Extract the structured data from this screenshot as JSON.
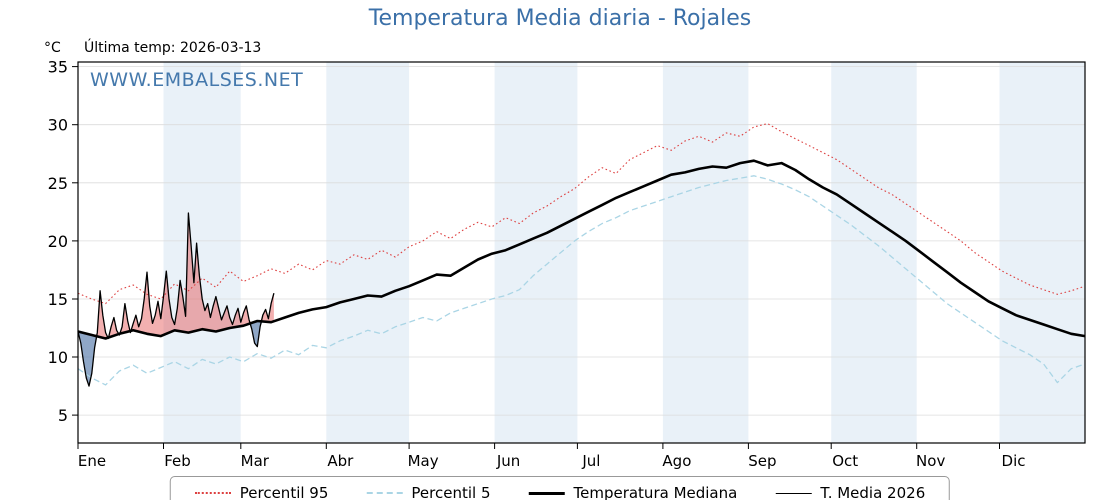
{
  "title": "Temperatura Media diaria - Rojales",
  "watermark": "WWW.EMBALSES.NET",
  "y_axis_unit": "°C",
  "annotation": "Última temp: 2026-03-13",
  "colors": {
    "title_blue": "#3b70a8",
    "percentil95_red": "#dd4040",
    "percentil5_blue": "#aad5e5",
    "median_black": "#000000",
    "band_blue": "#e9f1f8"
  },
  "legend": [
    {
      "label": "Percentil 95"
    },
    {
      "label": "Percentil 5"
    },
    {
      "label": "Temperatura Mediana"
    },
    {
      "label": "T. Media 2026"
    }
  ],
  "chart_data": {
    "type": "line",
    "title": "Temperatura Media diaria - Rojales",
    "xlabel": "",
    "ylabel": "°C",
    "ylim": [
      2.6,
      35.4
    ],
    "yticks": [
      5,
      10,
      15,
      20,
      25,
      30,
      35
    ],
    "grid": true,
    "legend_position": "bottom",
    "x_months": [
      "Ene",
      "Feb",
      "Mar",
      "Abr",
      "May",
      "Jun",
      "Jul",
      "Ago",
      "Sep",
      "Oct",
      "Nov",
      "Dic"
    ],
    "month_start_days": [
      0,
      31,
      59,
      90,
      120,
      151,
      181,
      212,
      243,
      273,
      304,
      334,
      365
    ],
    "shaded_months": [
      1,
      3,
      5,
      7,
      9,
      11
    ],
    "band_color": "#e9f1f8",
    "fills": {
      "above_color": "rgba(228,80,80,0.45)",
      "below_color": "rgba(95,130,175,0.70)",
      "description": "fill between T. Media 2026 and Temperatura Mediana: red where above median, blue where below"
    },
    "series": [
      {
        "id": "percentil-95",
        "name": "Percentil 95",
        "color": "#dd4040",
        "style": "dotted",
        "width": 1.1,
        "step": 5,
        "values": [
          15.5,
          15.0,
          14.6,
          15.8,
          16.2,
          15.4,
          15.0,
          16.3,
          15.7,
          16.8,
          16.0,
          17.4,
          16.5,
          17.0,
          17.6,
          17.2,
          18.0,
          17.5,
          18.3,
          18.0,
          18.8,
          18.4,
          19.2,
          18.6,
          19.5,
          20.0,
          20.8,
          20.2,
          21.0,
          21.6,
          21.2,
          22.0,
          21.5,
          22.4,
          23.0,
          23.8,
          24.5,
          25.5,
          26.3,
          25.8,
          27.0,
          27.6,
          28.2,
          27.8,
          28.6,
          29.0,
          28.5,
          29.3,
          29.0,
          29.8,
          30.1,
          29.4,
          28.8,
          28.2,
          27.6,
          27.0,
          26.2,
          25.4,
          24.6,
          24.0,
          23.2,
          22.4,
          21.6,
          20.8,
          20.0,
          19.0,
          18.2,
          17.4,
          16.8,
          16.2,
          15.8,
          15.4,
          15.7,
          16.1
        ]
      },
      {
        "id": "percentil-5",
        "name": "Percentil 5",
        "color": "#aad5e5",
        "style": "dashed",
        "width": 1.3,
        "step": 5,
        "values": [
          9.0,
          8.2,
          7.6,
          8.8,
          9.3,
          8.6,
          9.1,
          9.6,
          9.0,
          9.8,
          9.4,
          10.0,
          9.6,
          10.3,
          9.9,
          10.6,
          10.2,
          11.0,
          10.8,
          11.4,
          11.8,
          12.3,
          12.0,
          12.6,
          13.0,
          13.4,
          13.1,
          13.8,
          14.2,
          14.6,
          15.0,
          15.3,
          15.8,
          17.0,
          18.0,
          19.0,
          20.0,
          20.8,
          21.5,
          22.0,
          22.6,
          23.0,
          23.4,
          23.8,
          24.2,
          24.6,
          24.9,
          25.2,
          25.4,
          25.6,
          25.3,
          24.9,
          24.4,
          23.8,
          23.0,
          22.2,
          21.4,
          20.5,
          19.6,
          18.6,
          17.6,
          16.6,
          15.6,
          14.6,
          13.8,
          13.0,
          12.2,
          11.4,
          10.8,
          10.2,
          9.4,
          7.8,
          9.0,
          9.4
        ]
      },
      {
        "id": "temperatura-mediana",
        "name": "Temperatura Mediana",
        "color": "#000000",
        "style": "solid",
        "width": 2.6,
        "step": 5,
        "values": [
          12.2,
          11.9,
          11.6,
          12.0,
          12.3,
          12.0,
          11.8,
          12.3,
          12.1,
          12.4,
          12.2,
          12.5,
          12.7,
          13.1,
          13.0,
          13.4,
          13.8,
          14.1,
          14.3,
          14.7,
          15.0,
          15.3,
          15.2,
          15.7,
          16.1,
          16.6,
          17.1,
          17.0,
          17.7,
          18.4,
          18.9,
          19.2,
          19.7,
          20.2,
          20.7,
          21.3,
          21.9,
          22.5,
          23.1,
          23.7,
          24.2,
          24.7,
          25.2,
          25.7,
          25.9,
          26.2,
          26.4,
          26.3,
          26.7,
          26.9,
          26.5,
          26.7,
          26.1,
          25.3,
          24.6,
          24.0,
          23.2,
          22.4,
          21.6,
          20.8,
          20.0,
          19.1,
          18.2,
          17.3,
          16.4,
          15.6,
          14.8,
          14.2,
          13.6,
          13.2,
          12.8,
          12.4,
          12.0,
          11.8
        ]
      },
      {
        "id": "t-media-2026",
        "name": "T. Media 2026",
        "color": "#000000",
        "style": "solid",
        "width": 1.3,
        "step": 1,
        "values": [
          12.2,
          11.2,
          9.6,
          8.2,
          7.5,
          8.6,
          10.8,
          12.1,
          15.7,
          13.6,
          12.1,
          11.6,
          12.6,
          13.4,
          12.3,
          11.9,
          12.6,
          14.6,
          13.1,
          12.1,
          12.9,
          13.6,
          12.6,
          13.3,
          15.0,
          17.3,
          14.4,
          12.9,
          13.6,
          14.8,
          13.3,
          15.2,
          17.4,
          15.0,
          13.4,
          12.8,
          14.2,
          16.6,
          15.2,
          13.5,
          22.4,
          19.6,
          16.4,
          19.8,
          17.0,
          15.0,
          14.0,
          14.6,
          13.4,
          14.4,
          15.2,
          14.2,
          13.2,
          13.8,
          14.4,
          13.4,
          12.8,
          13.6,
          14.2,
          13.0,
          13.8,
          14.4,
          13.2,
          12.4,
          11.2,
          10.9,
          12.6,
          13.6,
          14.1,
          13.3,
          14.6,
          15.5
        ]
      }
    ]
  }
}
